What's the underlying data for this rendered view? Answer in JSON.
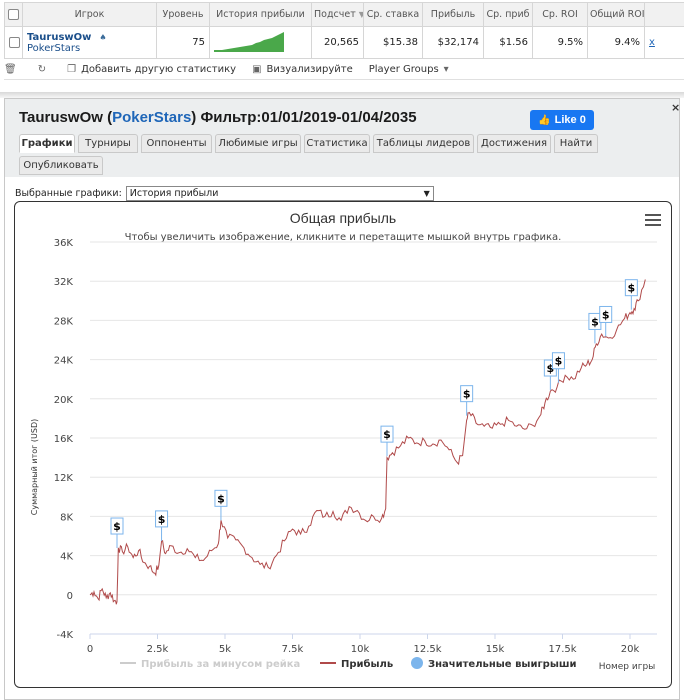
{
  "table": {
    "headers": [
      "Игрок",
      "Уровень",
      "История прибыли",
      "Подсчет",
      "Ср. ставка",
      "Прибыль",
      "Ср. приб",
      "Ср. ROI",
      "Общий ROI"
    ],
    "row": {
      "name": "TauruswOw",
      "site": "PokerStars",
      "level": "75",
      "count": "20,565",
      "avg_stake": "$15.38",
      "profit": "$32,174",
      "avg_profit": "$1.56",
      "avg_roi": "9.5%",
      "total_roi": "9.4%",
      "extra": "x"
    }
  },
  "toolbar": {
    "add_stats": "Добавить другую статистику",
    "visualize": "Визуализируйте",
    "player_groups": "Player Groups"
  },
  "panel": {
    "title_name": "TauruswOw",
    "title_open": "(",
    "title_site": "PokerStars",
    "title_close": ")",
    "title_filter": " Фильтр:01/01/2019-01/04/2035",
    "like": "Like 0",
    "close": "×",
    "tabs_row1": [
      "Графики",
      "Турниры",
      "Оппоненты",
      "Любимые игры",
      "Статистика",
      "Таблицы лидеров",
      "Достижения",
      "Найти"
    ],
    "tabs_row2": [
      "Опубликовать"
    ],
    "select_label": "Выбранные графики:",
    "select_value": "История прибыли"
  },
  "chart_data": {
    "type": "line",
    "title": "Общая прибыль",
    "subtitle": "Чтобы увеличить изображение, кликните и перетащите мышкой внутрь графика.",
    "ylabel": "Суммарный итог (USD)",
    "xlabel": "Номер игры",
    "ylim": [
      -4000,
      36000
    ],
    "xlim": [
      0,
      20565
    ],
    "y_ticks": [
      "-4K",
      "0",
      "4K",
      "8K",
      "12K",
      "16K",
      "20K",
      "24K",
      "28K",
      "32K",
      "36K"
    ],
    "x_ticks": [
      "0",
      "2.5k",
      "5k",
      "7.5k",
      "10k",
      "12.5k",
      "15k",
      "17.5k",
      "20k"
    ],
    "legend": [
      "Прибыль за минусом рейка",
      "Прибыль",
      "Значительные выигрыши"
    ],
    "legend_position": "bottom",
    "colors": {
      "profit": "#b04a4a",
      "rake_profit": "#cccccc",
      "wins": "#7cb5ec"
    },
    "series": [
      {
        "name": "Прибыль",
        "points": [
          [
            0,
            0
          ],
          [
            150,
            300
          ],
          [
            300,
            -400
          ],
          [
            450,
            600
          ],
          [
            600,
            -300
          ],
          [
            750,
            200
          ],
          [
            900,
            -600
          ],
          [
            1000,
            -700
          ],
          [
            1050,
            4800
          ],
          [
            1200,
            4400
          ],
          [
            1400,
            4900
          ],
          [
            1600,
            3800
          ],
          [
            1800,
            4500
          ],
          [
            2000,
            3300
          ],
          [
            2200,
            2900
          ],
          [
            2400,
            2200
          ],
          [
            2550,
            3000
          ],
          [
            2650,
            5500
          ],
          [
            2800,
            4200
          ],
          [
            3000,
            5000
          ],
          [
            3300,
            4300
          ],
          [
            3600,
            4700
          ],
          [
            3900,
            3800
          ],
          [
            4200,
            3500
          ],
          [
            4500,
            4500
          ],
          [
            4750,
            5200
          ],
          [
            4850,
            7600
          ],
          [
            5100,
            5800
          ],
          [
            5400,
            5600
          ],
          [
            5700,
            4800
          ],
          [
            6000,
            3800
          ],
          [
            6300,
            3100
          ],
          [
            6600,
            2800
          ],
          [
            6900,
            4000
          ],
          [
            7200,
            5500
          ],
          [
            7500,
            6700
          ],
          [
            7800,
            6200
          ],
          [
            8100,
            7000
          ],
          [
            8400,
            8600
          ],
          [
            8700,
            8000
          ],
          [
            9000,
            8500
          ],
          [
            9300,
            7600
          ],
          [
            9600,
            9000
          ],
          [
            9900,
            8600
          ],
          [
            10200,
            7600
          ],
          [
            10500,
            8000
          ],
          [
            10800,
            7800
          ],
          [
            10950,
            8800
          ],
          [
            11000,
            14000
          ],
          [
            11200,
            14500
          ],
          [
            11500,
            15200
          ],
          [
            11800,
            16000
          ],
          [
            12100,
            15500
          ],
          [
            12400,
            15700
          ],
          [
            12700,
            15400
          ],
          [
            13000,
            15800
          ],
          [
            13300,
            14800
          ],
          [
            13600,
            13500
          ],
          [
            13800,
            14200
          ],
          [
            13950,
            17800
          ],
          [
            14050,
            18600
          ],
          [
            14300,
            17500
          ],
          [
            14600,
            17200
          ],
          [
            14900,
            17000
          ],
          [
            15200,
            17400
          ],
          [
            15500,
            17800
          ],
          [
            15800,
            17200
          ],
          [
            16100,
            16900
          ],
          [
            16400,
            17300
          ],
          [
            16700,
            18400
          ],
          [
            16850,
            19600
          ],
          [
            17050,
            20800
          ],
          [
            17300,
            21200
          ],
          [
            17600,
            22400
          ],
          [
            17900,
            22000
          ],
          [
            18200,
            23200
          ],
          [
            18400,
            23500
          ],
          [
            18600,
            24000
          ],
          [
            18750,
            25600
          ],
          [
            18950,
            26600
          ],
          [
            19200,
            26200
          ],
          [
            19500,
            27000
          ],
          [
            19800,
            28200
          ],
          [
            20000,
            28800
          ],
          [
            20150,
            29200
          ],
          [
            20300,
            30000
          ],
          [
            20565,
            32174
          ]
        ]
      }
    ],
    "big_wins_x": [
      1000,
      2650,
      4850,
      11000,
      13950,
      17050,
      17350,
      18700,
      19100,
      20050
    ]
  }
}
